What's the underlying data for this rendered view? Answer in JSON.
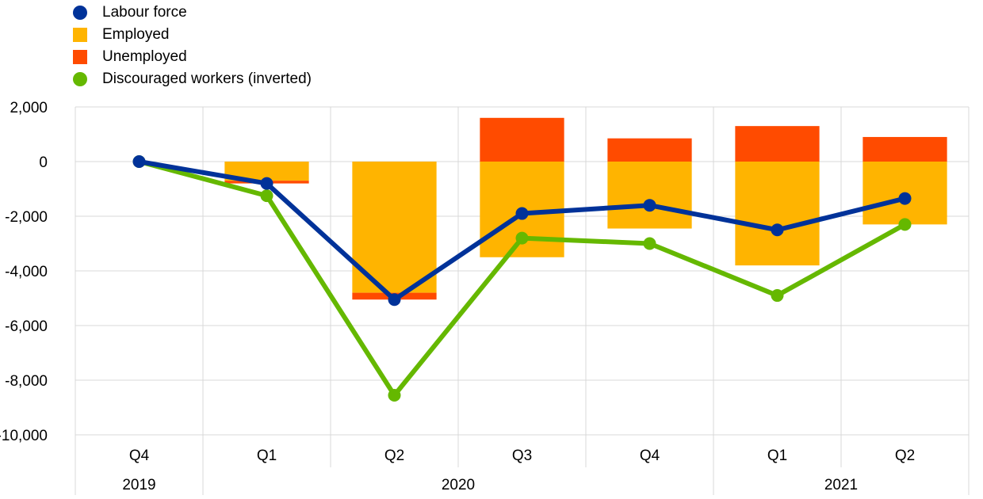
{
  "legend": {
    "items": [
      {
        "label": "Labour force",
        "color": "#003299",
        "marker": "dot"
      },
      {
        "label": "Employed",
        "color": "#ffb400",
        "marker": "square"
      },
      {
        "label": "Unemployed",
        "color": "#ff4b00",
        "marker": "square"
      },
      {
        "label": "Discouraged workers (inverted)",
        "color": "#65b800",
        "marker": "dot"
      }
    ]
  },
  "chart_data": {
    "type": "bar",
    "categories": [
      "Q4",
      "Q1",
      "Q2",
      "Q3",
      "Q4",
      "Q1",
      "Q2"
    ],
    "years": [
      {
        "label": "2019",
        "span": 1
      },
      {
        "label": "2020",
        "span": 4
      },
      {
        "label": "2021",
        "span": 2
      }
    ],
    "ylim": [
      -10000,
      2000
    ],
    "yticks": [
      2000,
      0,
      -2000,
      -4000,
      -6000,
      -8000,
      -10000
    ],
    "ytick_labels": [
      "2,000",
      "0",
      "-2,000",
      "-4,000",
      "-6,000",
      "-8,000",
      "-10,000"
    ],
    "grid": true,
    "legend_position": "top-left",
    "stacked": true,
    "series": [
      {
        "name": "Employed",
        "kind": "bar",
        "color": "#ffb400",
        "values": [
          0,
          -700,
          -4800,
          -3500,
          -2450,
          -3800,
          -2300
        ]
      },
      {
        "name": "Unemployed",
        "kind": "bar",
        "color": "#ff4b00",
        "values": [
          0,
          -100,
          -250,
          1600,
          850,
          1300,
          900
        ]
      },
      {
        "name": "Labour force",
        "kind": "line",
        "color": "#003299",
        "values": [
          0,
          -800,
          -5050,
          -1900,
          -1600,
          -2500,
          -1350
        ]
      },
      {
        "name": "Discouraged workers (inverted)",
        "kind": "line",
        "color": "#65b800",
        "values": [
          0,
          -1250,
          -8550,
          -2800,
          -3000,
          -4900,
          -2300
        ]
      }
    ]
  }
}
